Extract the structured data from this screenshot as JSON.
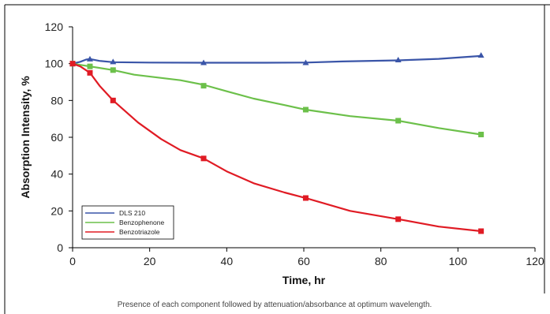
{
  "chart_data": {
    "type": "line",
    "xlabel": "Time, hr",
    "ylabel": "Absorption Intensity, %",
    "xlim": [
      0,
      120
    ],
    "ylim": [
      0,
      120
    ],
    "x_ticks": [
      0,
      20,
      40,
      60,
      80,
      100,
      120
    ],
    "y_ticks": [
      0,
      20,
      40,
      60,
      80,
      100,
      120
    ],
    "grid": false,
    "legend_position": "bottom-left",
    "caption": "Presence of each component followed by attenuation/absorbance at optimum wavelength.",
    "series": [
      {
        "name": "DLS 210",
        "color": "#3a55a8",
        "marker": "triangle",
        "markers_x": [
          0,
          4.5,
          10.5,
          34,
          60.5,
          84.5,
          106
        ],
        "markers_y": [
          100,
          102.5,
          101,
          100.5,
          100.5,
          102,
          104.5
        ],
        "line": [
          [
            0,
            100
          ],
          [
            2,
            101
          ],
          [
            3.5,
            102.2
          ],
          [
            4.5,
            102.5
          ],
          [
            7,
            101.5
          ],
          [
            10.5,
            100.8
          ],
          [
            20,
            100.6
          ],
          [
            34,
            100.5
          ],
          [
            50,
            100.5
          ],
          [
            60.5,
            100.6
          ],
          [
            70,
            101.2
          ],
          [
            84.5,
            101.8
          ],
          [
            95,
            102.6
          ],
          [
            106,
            104.2
          ]
        ]
      },
      {
        "name": "Benzophenone",
        "color": "#6cc04a",
        "marker": "square",
        "markers_x": [
          0,
          4.5,
          10.5,
          34,
          60.5,
          84.5,
          106
        ],
        "markers_y": [
          100,
          98.5,
          96.5,
          88,
          75,
          69,
          61.5
        ],
        "line": [
          [
            0,
            100
          ],
          [
            4.5,
            98.5
          ],
          [
            10.5,
            96.5
          ],
          [
            16,
            94
          ],
          [
            22,
            92.5
          ],
          [
            28,
            91
          ],
          [
            34,
            88.5
          ],
          [
            40,
            85
          ],
          [
            47,
            81
          ],
          [
            55,
            77.5
          ],
          [
            60.5,
            75
          ],
          [
            72,
            71.5
          ],
          [
            84.5,
            69
          ],
          [
            95,
            65
          ],
          [
            106,
            61.5
          ]
        ]
      },
      {
        "name": "Benzotriazole",
        "color": "#e01b24",
        "marker": "square",
        "markers_x": [
          0,
          4.5,
          10.5,
          34,
          60.5,
          84.5,
          106
        ],
        "markers_y": [
          100,
          95,
          80,
          48.5,
          27,
          15.5,
          9
        ],
        "line": [
          [
            0,
            100
          ],
          [
            2,
            98.5
          ],
          [
            4.5,
            95
          ],
          [
            7,
            88
          ],
          [
            10.5,
            80
          ],
          [
            17,
            68
          ],
          [
            23,
            59
          ],
          [
            28,
            53
          ],
          [
            34,
            48.5
          ],
          [
            40,
            41.5
          ],
          [
            47,
            35
          ],
          [
            55,
            30
          ],
          [
            60.5,
            27
          ],
          [
            72,
            20
          ],
          [
            84.5,
            15.5
          ],
          [
            95,
            11.5
          ],
          [
            106,
            9
          ]
        ]
      }
    ]
  }
}
